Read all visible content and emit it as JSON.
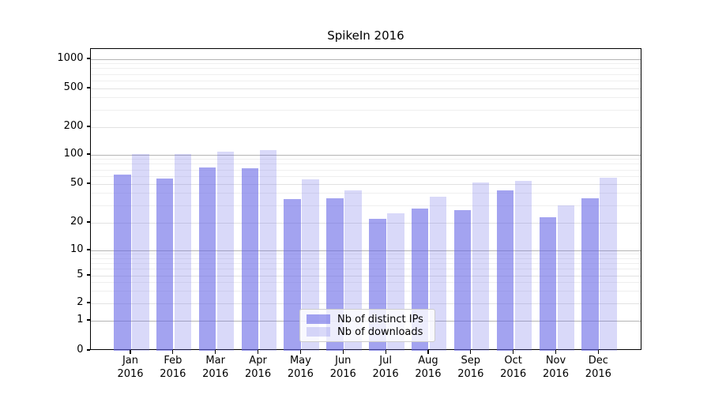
{
  "title": "SpikeIn 2016",
  "chart_data": {
    "type": "bar",
    "title": "SpikeIn 2016",
    "categories": [
      "Jan 2016",
      "Feb 2016",
      "Mar 2016",
      "Apr 2016",
      "May 2016",
      "Jun 2016",
      "Jul 2016",
      "Aug 2016",
      "Sep 2016",
      "Oct 2016",
      "Nov 2016",
      "Dec 2016"
    ],
    "series": [
      {
        "name": "Nb of distinct IPs",
        "color": "rgba(102,102,230,0.60)",
        "values": [
          63,
          57,
          74,
          73,
          35,
          36,
          22,
          28,
          27,
          43,
          23,
          36
        ]
      },
      {
        "name": "Nb of downloads",
        "color": "rgba(102,102,230,0.25)",
        "values": [
          101,
          103,
          108,
          112,
          56,
          43,
          25,
          37,
          52,
          54,
          30,
          58
        ]
      }
    ],
    "yscale": "symlog",
    "ylim": [
      0,
      1430
    ],
    "y_ticks": [
      1000,
      500,
      200,
      100,
      50,
      20,
      10,
      5,
      2,
      1,
      0
    ],
    "y_minor_ticks": [
      3,
      4,
      6,
      7,
      8,
      9,
      30,
      40,
      60,
      70,
      80,
      90,
      300,
      400,
      600,
      700,
      800,
      900
    ],
    "y_scale_anchors": [
      [
        0,
        443
      ],
      [
        1,
        405
      ],
      [
        2,
        383
      ],
      [
        5,
        348
      ],
      [
        10,
        316
      ],
      [
        20,
        281
      ],
      [
        50,
        232
      ],
      [
        100,
        195
      ],
      [
        200,
        160
      ],
      [
        500,
        111
      ],
      [
        1000,
        74
      ]
    ],
    "grid": true,
    "legend_position": "lower center"
  },
  "colors": {
    "grid_decade": "#b4b4b4",
    "grid_labeled": "#e2e2e2",
    "grid_minor": "#efefef",
    "axis": "#000000",
    "text": "#000000",
    "legend_border": "#cccccc"
  },
  "legend": {
    "items": [
      {
        "label": "Nb of distinct IPs"
      },
      {
        "label": "Nb of downloads"
      }
    ]
  }
}
